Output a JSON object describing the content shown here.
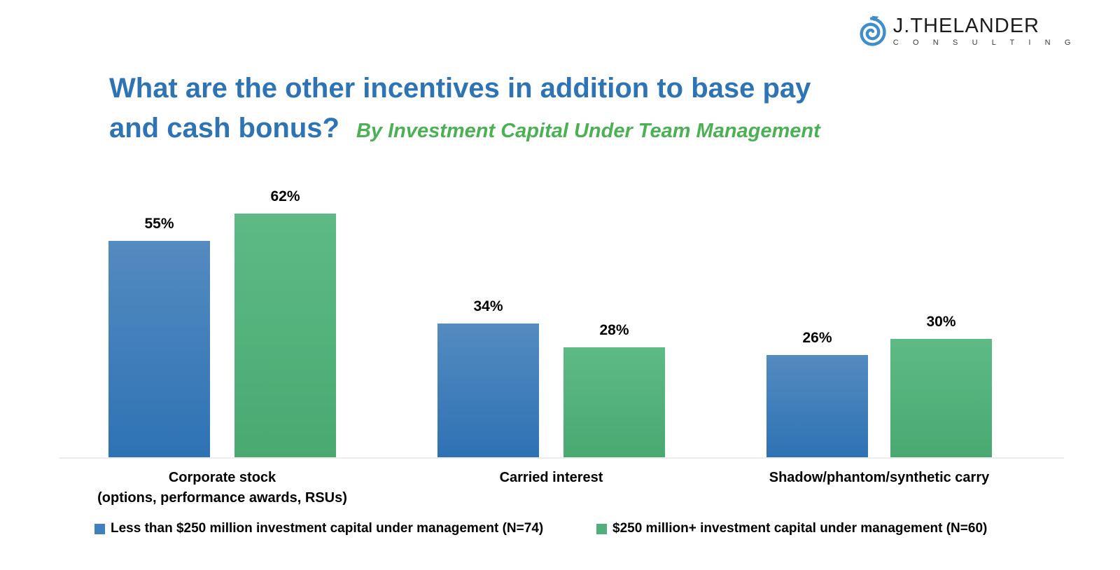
{
  "page": {
    "background": "#ffffff"
  },
  "logo": {
    "brand": "J.THELANDER",
    "brand_sub": "C O N S U L T I N G",
    "icon": "spiral-arrow-icon",
    "icon_color": "#3e8ecc"
  },
  "title": {
    "line1": "What are the other incentives in addition to base pay",
    "line2": "and cash bonus?",
    "subtitle": "By Investment Capital Under Team Management",
    "color": "#2e74b5",
    "subtitle_color": "#4cb054"
  },
  "chart_data": {
    "type": "bar",
    "title": "What are the other incentives in addition to base pay and cash bonus?",
    "subtitle": "By Investment Capital Under Team Management",
    "categories": [
      "Corporate stock (options, performance awards, RSUs)",
      "Carried interest",
      "Shadow/phantom/synthetic carry"
    ],
    "category_lines": [
      [
        "Corporate stock",
        "(options, performance awards, RSUs)"
      ],
      [
        "Carried interest"
      ],
      [
        "Shadow/phantom/synthetic carry"
      ]
    ],
    "series": [
      {
        "name": "Less than $250 million investment capital under management (N=74)",
        "values": [
          55,
          34,
          26
        ],
        "color_top": "#548bc0",
        "color_bottom": "#2e72b4",
        "swatch_color": "#4080bd"
      },
      {
        "name": "$250 million+ investment capital under management (N=60)",
        "values": [
          62,
          28,
          30
        ],
        "color_top": "#5eba85",
        "color_bottom": "#49a971",
        "swatch_color": "#52ae7c"
      }
    ],
    "value_suffix": "%",
    "data_labels": true,
    "ylim": [
      0,
      70
    ],
    "grid": false,
    "legend_position": "bottom",
    "axis_line_color": "#ececec",
    "xlabel": "",
    "ylabel": ""
  }
}
